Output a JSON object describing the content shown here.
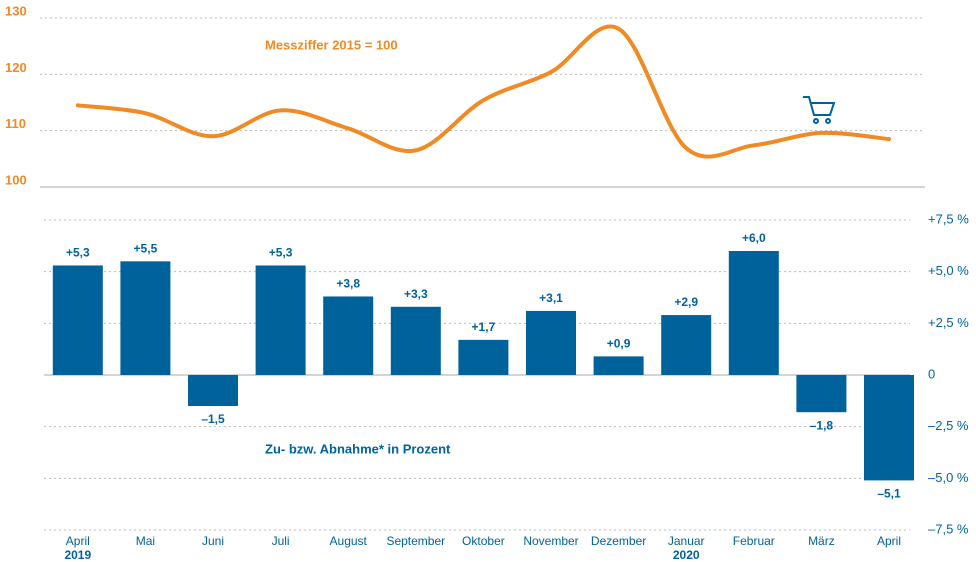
{
  "chart_data": [
    {
      "type": "line",
      "annotation": "Messziffer 2015 = 100",
      "values": [
        114.5,
        113.1,
        109.0,
        113.6,
        110.4,
        106.5,
        115.4,
        120.4,
        128.1,
        106.9,
        107.4,
        109.6,
        108.5
      ],
      "color": "#f08a24",
      "ylim": [
        100,
        130
      ],
      "yticks": [
        100,
        110,
        120,
        130
      ],
      "grid": true
    },
    {
      "type": "bar",
      "annotation": "Zu- bzw. Abnahme* in Prozent",
      "categories": [
        "April",
        "Mai",
        "Juni",
        "Juli",
        "August",
        "September",
        "Oktober",
        "November",
        "Dezember",
        "Januar",
        "Februar",
        "März",
        "April"
      ],
      "year_labels": [
        "2019",
        null,
        null,
        null,
        null,
        null,
        null,
        null,
        null,
        "2020",
        null,
        null,
        null
      ],
      "values": [
        5.3,
        5.5,
        -1.5,
        5.3,
        3.8,
        3.3,
        1.7,
        3.1,
        0.9,
        2.9,
        6.0,
        -1.8,
        -5.1
      ],
      "value_labels": [
        "+5,3",
        "+5,5",
        "–1,5",
        "+5,3",
        "+3,8",
        "+3,3",
        "+1,7",
        "+3,1",
        "+0,9",
        "+2,9",
        "+6,0",
        "–1,8",
        "–5,1"
      ],
      "color": "#00629b",
      "ylim": [
        -7.5,
        7.5
      ],
      "yticks": [
        {
          "value": -7.5,
          "label": "–7,5 %"
        },
        {
          "value": -5.0,
          "label": "–5,0 %"
        },
        {
          "value": -2.5,
          "label": "–2,5 %"
        },
        0,
        {
          "value": 2.5,
          "label": "+2,5 %"
        },
        {
          "value": 5.0,
          "label": "+5,0 %"
        },
        {
          "value": 7.5,
          "label": "+7,5 %"
        }
      ],
      "grid": true
    }
  ]
}
